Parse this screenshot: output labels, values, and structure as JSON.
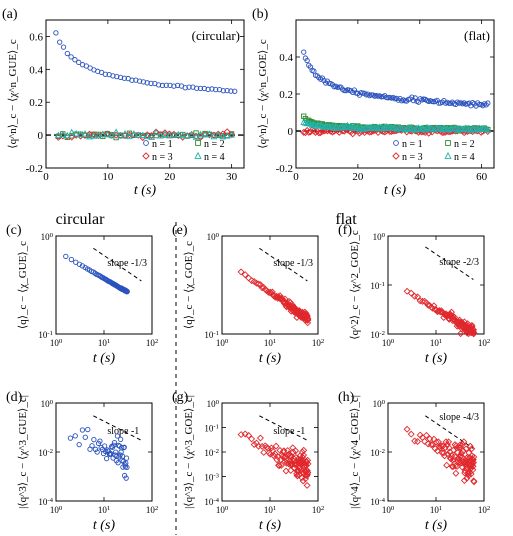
{
  "figure": {
    "section_left": "circular",
    "section_right": "flat"
  },
  "colors": {
    "n1": "#2a52be",
    "n2": "#2e8b2e",
    "n3": "#e0282d",
    "n4": "#20b2aa",
    "red": "#e0282d"
  },
  "chart_data": [
    {
      "id": "a",
      "panel_label": "(a)",
      "tag": "(circular)",
      "type": "scatter",
      "xlabel": "t (s)",
      "ylabel": "⟨q^n⟩_c − ⟨χ^n_GUE⟩_c",
      "xlim": [
        0,
        32
      ],
      "ylim": [
        -0.2,
        0.7
      ],
      "xticks": [
        "0",
        "10",
        "20",
        "30"
      ],
      "yticks": [
        "-0.2",
        "0",
        "0.2",
        "0.4",
        "0.6"
      ],
      "zero_line": true,
      "legend": [
        "n = 1",
        "n = 2",
        "n = 3",
        "n = 4"
      ],
      "series": [
        {
          "name": "n = 1",
          "shape": "circle",
          "t_range": [
            1.6,
            30.5
          ],
          "count": 48,
          "model": "power",
          "a": 0.706,
          "p": 0.282,
          "scatter": 0.003
        },
        {
          "name": "n = 2",
          "shape": "square",
          "t_range": [
            2,
            30
          ],
          "count": 40,
          "model": "decay",
          "a": 0.015,
          "p": 0.6,
          "scatter": 0.006
        },
        {
          "name": "n = 3",
          "shape": "diamond",
          "t_range": [
            2,
            30
          ],
          "count": 40,
          "model": "decay",
          "a": -0.09,
          "p": 0.9,
          "scatter": 0.008
        },
        {
          "name": "n = 4",
          "shape": "triangle",
          "t_range": [
            2,
            30
          ],
          "count": 40,
          "model": "decay",
          "a": 0.03,
          "p": 0.6,
          "scatter": 0.008
        }
      ]
    },
    {
      "id": "b",
      "panel_label": "(b)",
      "tag": "(flat)",
      "type": "scatter",
      "xlabel": "t (s)",
      "ylabel": "⟨q^n⟩_c − ⟨χ^n_GOE⟩_c",
      "xlim": [
        0,
        64
      ],
      "ylim": [
        -0.2,
        0.6
      ],
      "xticks": [
        "0",
        "20",
        "40",
        "60"
      ],
      "yticks": [
        "-0.2",
        "0",
        "0.2",
        "0.4"
      ],
      "zero_line": true,
      "legend": [
        "n = 1",
        "n = 2",
        "n = 3",
        "n = 4"
      ],
      "series": [
        {
          "name": "n = 1",
          "shape": "circle",
          "t_range": [
            2.5,
            62
          ],
          "count": 110,
          "model": "power",
          "a": 0.58,
          "p": 0.34,
          "scatter": 0.005
        },
        {
          "name": "n = 2",
          "shape": "square",
          "t_range": [
            2.5,
            62
          ],
          "count": 110,
          "model": "power",
          "a": 0.13,
          "p": 0.6,
          "scatter": 0.004
        },
        {
          "name": "n = 3",
          "shape": "diamond",
          "t_range": [
            2.5,
            62
          ],
          "count": 110,
          "model": "decay",
          "a": -0.06,
          "p": 0.8,
          "scatter": 0.005
        },
        {
          "name": "n = 4",
          "shape": "triangle",
          "t_range": [
            2.5,
            62
          ],
          "count": 110,
          "model": "power",
          "a": 0.085,
          "p": 0.55,
          "scatter": 0.004
        }
      ]
    },
    {
      "id": "c",
      "panel_label": "(c)",
      "type": "scatter",
      "scale": "log-log",
      "color": "n1",
      "xlabel": "t (s)",
      "ylabel": "⟨q⟩_c − ⟨χ_GUE⟩_c",
      "xlim": [
        1,
        100
      ],
      "ylim": [
        0.1,
        1
      ],
      "xticks": [
        "10^0",
        "10^1",
        "10^2"
      ],
      "yticks": [
        "10^-1",
        "10^0"
      ],
      "annotation": "slope -1/3",
      "slope": -0.3333,
      "series": [
        {
          "t_range": [
            1.6,
            30.5
          ],
          "count": 60,
          "model": "power",
          "a": 0.706,
          "p": 0.282,
          "scatter": 0.003
        }
      ]
    },
    {
      "id": "d",
      "panel_label": "(d)",
      "type": "scatter",
      "scale": "log-log",
      "color": "n1",
      "xlabel": "t (s)",
      "ylabel": "|⟨q^3⟩_c − ⟨χ^3_GUE⟩_c|",
      "xlim": [
        1,
        100
      ],
      "ylim": [
        0.0001,
        1
      ],
      "xticks": [
        "10^0",
        "10^1",
        "10^2"
      ],
      "yticks": [
        "10^-4",
        "10^-2",
        "10^0"
      ],
      "annotation": "slope -1",
      "slope": -1,
      "series": [
        {
          "t_range": [
            2,
            30
          ],
          "count": 55,
          "model": "power",
          "a": 0.12,
          "p": 0.95,
          "scatter": 0.45
        }
      ]
    },
    {
      "id": "e",
      "panel_label": "(e)",
      "type": "scatter",
      "scale": "log-log",
      "color": "red",
      "xlabel": "t (s)",
      "ylabel": "⟨q⟩_c − ⟨χ_GOE⟩_c",
      "xlim": [
        1,
        100
      ],
      "ylim": [
        0.1,
        1
      ],
      "xticks": [
        "10^0",
        "10^1",
        "10^2"
      ],
      "yticks": [
        "10^-1",
        "10^0"
      ],
      "annotation": "slope -1/3",
      "slope": -0.3333,
      "series": [
        {
          "t_range": [
            2.5,
            62
          ],
          "count": 110,
          "model": "power",
          "a": 0.58,
          "p": 0.34,
          "scatter": 0.02
        }
      ]
    },
    {
      "id": "f",
      "panel_label": "(f)",
      "type": "scatter",
      "scale": "log-log",
      "color": "red",
      "xlabel": "t (s)",
      "ylabel": "⟨q^2⟩_c − ⟨χ^2_GOE⟩_c",
      "xlim": [
        1,
        100
      ],
      "ylim": [
        0.01,
        1
      ],
      "xticks": [
        "10^0",
        "10^1",
        "10^2"
      ],
      "yticks": [
        "10^-2",
        "10^-1",
        "10^0"
      ],
      "annotation": "slope -2/3",
      "slope": -0.6667,
      "series": [
        {
          "t_range": [
            2.5,
            62
          ],
          "count": 110,
          "model": "power",
          "a": 0.13,
          "p": 0.6,
          "scatter": 0.06
        }
      ]
    },
    {
      "id": "g",
      "panel_label": "(g)",
      "type": "scatter",
      "scale": "log-log",
      "color": "red",
      "xlabel": "t (s)",
      "ylabel": "|⟨q^3⟩_c − ⟨χ^3_GOE⟩_c|",
      "xlim": [
        1,
        100
      ],
      "ylim": [
        0.0001,
        1
      ],
      "xticks": [
        "10^0",
        "10^1",
        "10^2"
      ],
      "yticks": [
        "10^-4",
        "10^-3",
        "10^-2",
        "10^-1",
        "10^0"
      ],
      "annotation": "slope -1",
      "slope": -1,
      "series": [
        {
          "t_range": [
            2.5,
            62
          ],
          "count": 110,
          "model": "power",
          "a": 0.11,
          "p": 1.0,
          "scatter": 0.3
        }
      ]
    },
    {
      "id": "h",
      "panel_label": "(h)",
      "type": "scatter",
      "scale": "log-log",
      "color": "red",
      "xlabel": "t (s)",
      "ylabel": "|⟨q^4⟩_c − ⟨χ^4_GOE⟩_c|",
      "xlim": [
        1,
        100
      ],
      "ylim": [
        0.0001,
        1
      ],
      "xticks": [
        "10^0",
        "10^1",
        "10^2"
      ],
      "yticks": [
        "10^-4",
        "10^-2",
        "10^0"
      ],
      "annotation": "slope -4/3",
      "slope": -1.3333,
      "series": [
        {
          "t_range": [
            2.5,
            62
          ],
          "count": 110,
          "model": "power",
          "a": 0.18,
          "p": 1.0,
          "scatter": 0.35
        }
      ]
    }
  ]
}
